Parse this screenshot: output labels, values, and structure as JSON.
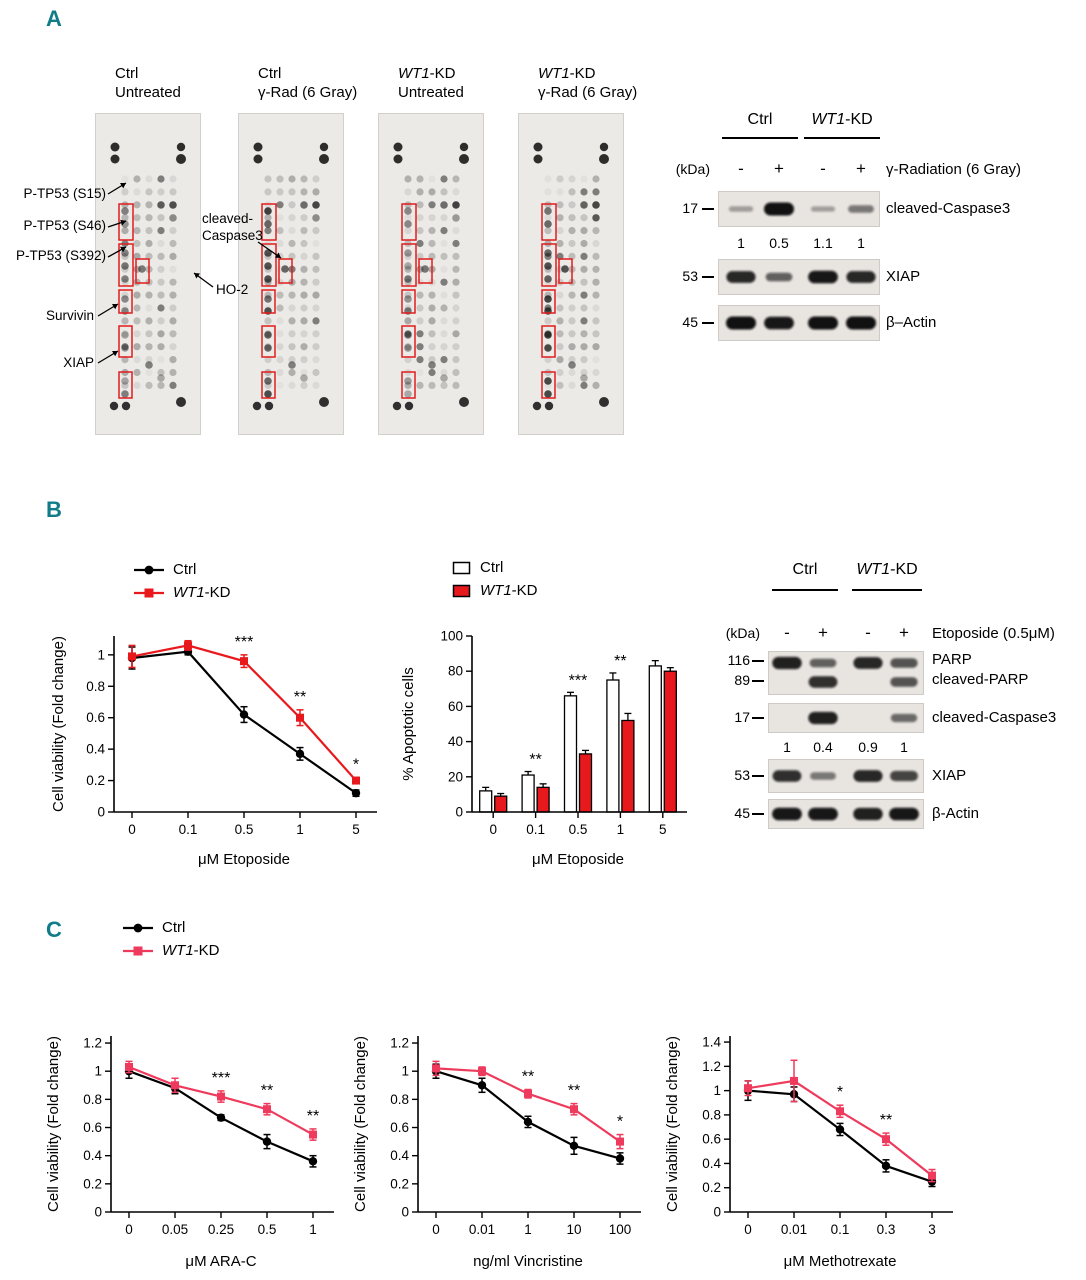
{
  "panels": {
    "a": "A",
    "b": "B",
    "c": "C"
  },
  "colors": {
    "panel_label": "#107c88",
    "red": "#e8191d",
    "pink": "#ee3a5c",
    "highlight_box": "#e11d1d"
  },
  "panel_a": {
    "array_titles": [
      {
        "name": {
          "italic": "",
          "rest": "Ctrl"
        },
        "treatment": "Untreated"
      },
      {
        "name": {
          "italic": "",
          "rest": "Ctrl"
        },
        "treatment": "γ-Rad (6 Gray)"
      },
      {
        "name": {
          "italic": "WT1",
          "rest": "-KD"
        },
        "treatment": "Untreated"
      },
      {
        "name": {
          "italic": "WT1",
          "rest": "-KD"
        },
        "treatment": "γ-Rad (6 Gray)"
      }
    ],
    "spot_labels": [
      "P-TP53 (S15)",
      "P-TP53 (S46)",
      "P-TP53 (S392)",
      "Survivin",
      "XIAP"
    ],
    "inner_labels": {
      "cleaved_caspase3_line1": "cleaved-",
      "cleaved_caspase3_line2": "Caspase3",
      "ho2": "HO-2"
    },
    "western": {
      "kda_label": "(kDa)",
      "groups": [
        {
          "italic": "",
          "rest": "Ctrl"
        },
        {
          "italic": "WT1",
          "rest": "-KD"
        }
      ],
      "lane_signs": [
        "-",
        "+",
        "-",
        "+"
      ],
      "treatment": "γ-Radiation (6 Gray)",
      "rows": [
        {
          "kda": "17",
          "label": "cleaved-Caspase3",
          "intensities": [
            0.05,
            1,
            0.03,
            0.3
          ]
        },
        {
          "kda": "53",
          "label": "XIAP",
          "intensities": [
            0.85,
            0.45,
            0.95,
            0.85
          ]
        },
        {
          "kda": "45",
          "label": "β–Actin",
          "intensities": [
            1,
            0.95,
            1,
            1
          ]
        }
      ],
      "quantification": [
        "1",
        "0.5",
        "1.1",
        "1"
      ]
    }
  },
  "panel_b": {
    "western": {
      "kda_label": "(kDa)",
      "groups": [
        {
          "italic": "",
          "rest": "Ctrl"
        },
        {
          "italic": "WT1",
          "rest": "-KD"
        }
      ],
      "lane_signs": [
        "-",
        "+",
        "-",
        "+"
      ],
      "treatment": "Etoposide (0.5μM)",
      "parp": {
        "kda_top": "116",
        "kda_bottom": "89",
        "label_top": "PARP",
        "label_bottom": "cleaved-PARP",
        "intensities_top": [
          0.9,
          0.45,
          0.85,
          0.55
        ],
        "intensities_bottom": [
          0,
          0.8,
          0,
          0.55
        ]
      },
      "rows": [
        {
          "kda": "17",
          "label": "cleaved-Caspase3",
          "intensities": [
            0,
            0.9,
            0,
            0.4
          ]
        },
        {
          "kda": "53",
          "label": "XIAP",
          "intensities": [
            0.8,
            0.3,
            0.85,
            0.65
          ]
        },
        {
          "kda": "45",
          "label": "β-Actin",
          "intensities": [
            0.95,
            0.95,
            0.9,
            0.95
          ]
        }
      ],
      "quantification": [
        "1",
        "0.4",
        "0.9",
        "1"
      ]
    }
  },
  "chart_data": [
    {
      "id": "viability-etoposide",
      "type": "line",
      "panel": "B",
      "xlabel": "μM Etoposide",
      "ylabel": "Cell viability (Fold change)",
      "categories": [
        "0",
        "0.1",
        "0.5",
        "1",
        "5"
      ],
      "ylim": [
        0,
        1.12
      ],
      "yticks": [
        0,
        0.2,
        0.4,
        0.6,
        0.8,
        1
      ],
      "legend_position": "top-left",
      "grid": false,
      "series": [
        {
          "name": {
            "italic": "",
            "rest": "Ctrl"
          },
          "color": "#000000",
          "marker": "circle",
          "values": [
            0.98,
            1.02,
            0.62,
            0.37,
            0.12
          ],
          "errors": [
            0.07,
            0.02,
            0.05,
            0.04,
            0.02
          ]
        },
        {
          "name": {
            "italic": "WT1",
            "rest": "-KD"
          },
          "color": "#e8191d",
          "marker": "square",
          "values": [
            0.99,
            1.06,
            0.96,
            0.6,
            0.2
          ],
          "errors": [
            0.07,
            0.03,
            0.04,
            0.05,
            0.02
          ]
        }
      ],
      "significance": [
        {
          "category": "0.5",
          "label": "***"
        },
        {
          "category": "1",
          "label": "**"
        },
        {
          "category": "5",
          "label": "*"
        }
      ]
    },
    {
      "id": "apoptosis-etoposide",
      "type": "bar",
      "panel": "B",
      "xlabel": "μM Etoposide",
      "ylabel": "% Apoptotic cells",
      "categories": [
        "0",
        "0.1",
        "0.5",
        "1",
        "5"
      ],
      "ylim": [
        0,
        100
      ],
      "yticks": [
        0,
        20,
        40,
        60,
        80,
        100
      ],
      "legend_position": "top-left",
      "grid": false,
      "series": [
        {
          "name": {
            "italic": "",
            "rest": "Ctrl"
          },
          "color": "#ffffff",
          "edge": "#000000",
          "values": [
            12,
            21,
            66,
            75,
            83
          ],
          "errors": [
            2,
            2,
            2,
            4,
            3
          ]
        },
        {
          "name": {
            "italic": "WT1",
            "rest": "-KD"
          },
          "color": "#e8191d",
          "edge": "#000000",
          "values": [
            9,
            14,
            33,
            52,
            80
          ],
          "errors": [
            1.5,
            2,
            2,
            4,
            2
          ]
        }
      ],
      "significance": [
        {
          "category": "0.1",
          "label": "**"
        },
        {
          "category": "0.5",
          "label": "***"
        },
        {
          "category": "1",
          "label": "**"
        }
      ]
    },
    {
      "id": "viability-arac",
      "type": "line",
      "panel": "C",
      "xlabel": "μM ARA-C",
      "ylabel": "Cell viability (Fold change)",
      "categories": [
        "0",
        "0.05",
        "0.25",
        "0.5",
        "1"
      ],
      "ylim": [
        0,
        1.25
      ],
      "yticks": [
        0,
        0.2,
        0.4,
        0.6,
        0.8,
        1,
        1.2
      ],
      "grid": false,
      "series": [
        {
          "name": {
            "italic": "",
            "rest": "Ctrl"
          },
          "color": "#000000",
          "marker": "circle",
          "values": [
            1.0,
            0.88,
            0.67,
            0.5,
            0.36
          ],
          "errors": [
            0.05,
            0.04,
            0.02,
            0.05,
            0.04
          ]
        },
        {
          "name": {
            "italic": "WT1",
            "rest": "-KD"
          },
          "color": "#ee3a5c",
          "marker": "square",
          "values": [
            1.03,
            0.9,
            0.82,
            0.73,
            0.55
          ],
          "errors": [
            0.04,
            0.05,
            0.04,
            0.04,
            0.04
          ]
        }
      ],
      "significance": [
        {
          "category": "0.25",
          "label": "***"
        },
        {
          "category": "0.5",
          "label": "**"
        },
        {
          "category": "1",
          "label": "**"
        }
      ]
    },
    {
      "id": "viability-vincristine",
      "type": "line",
      "panel": "C",
      "xlabel": "ng/ml Vincristine",
      "ylabel": "Cell viability (Fold change)",
      "categories": [
        "0",
        "0.01",
        "1",
        "10",
        "100"
      ],
      "ylim": [
        0,
        1.25
      ],
      "yticks": [
        0,
        0.2,
        0.4,
        0.6,
        0.8,
        1,
        1.2
      ],
      "grid": false,
      "series": [
        {
          "name": {
            "italic": "",
            "rest": "Ctrl"
          },
          "color": "#000000",
          "marker": "circle",
          "values": [
            1.0,
            0.9,
            0.64,
            0.47,
            0.38
          ],
          "errors": [
            0.05,
            0.05,
            0.04,
            0.06,
            0.04
          ]
        },
        {
          "name": {
            "italic": "WT1",
            "rest": "-KD"
          },
          "color": "#ee3a5c",
          "marker": "square",
          "values": [
            1.02,
            1.0,
            0.84,
            0.73,
            0.5
          ],
          "errors": [
            0.05,
            0.03,
            0.03,
            0.04,
            0.05
          ]
        }
      ],
      "significance": [
        {
          "category": "1",
          "label": "**"
        },
        {
          "category": "10",
          "label": "**"
        },
        {
          "category": "100",
          "label": "*"
        }
      ]
    },
    {
      "id": "viability-methotrexate",
      "type": "line",
      "panel": "C",
      "xlabel": "μM Methotrexate",
      "ylabel": "Cell viability (Fold change)",
      "categories": [
        "0",
        "0.01",
        "0.1",
        "0.3",
        "3"
      ],
      "ylim": [
        0,
        1.45
      ],
      "yticks": [
        0,
        0.2,
        0.4,
        0.6,
        0.8,
        1,
        1.2,
        1.4
      ],
      "grid": false,
      "series": [
        {
          "name": {
            "italic": "",
            "rest": "Ctrl"
          },
          "color": "#000000",
          "marker": "circle",
          "values": [
            1.0,
            0.97,
            0.68,
            0.38,
            0.25
          ],
          "errors": [
            0.08,
            0.06,
            0.05,
            0.05,
            0.04
          ]
        },
        {
          "name": {
            "italic": "WT1",
            "rest": "-KD"
          },
          "color": "#ee3a5c",
          "marker": "square",
          "values": [
            1.02,
            1.08,
            0.83,
            0.6,
            0.3
          ],
          "errors": [
            0.06,
            0.17,
            0.05,
            0.05,
            0.05
          ]
        }
      ],
      "significance": [
        {
          "category": "0.1",
          "label": "*"
        },
        {
          "category": "0.3",
          "label": "**"
        }
      ]
    }
  ]
}
